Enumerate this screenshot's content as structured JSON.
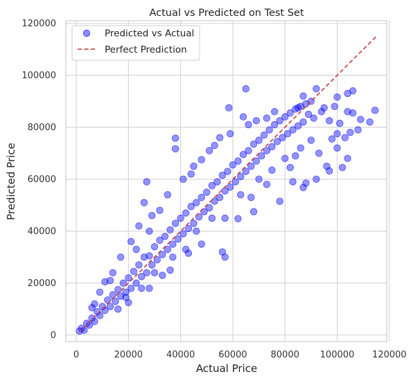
{
  "chart_data": {
    "type": "scatter",
    "title": "Actual vs Predicted on Test Set",
    "xlabel": "Actual Price",
    "ylabel": "Predicted Price",
    "xlim": [
      -4000,
      119000
    ],
    "ylim": [
      -2500,
      121000
    ],
    "xticks": [
      0,
      20000,
      40000,
      60000,
      80000,
      100000,
      120000
    ],
    "yticks": [
      0,
      20000,
      40000,
      60000,
      80000,
      100000,
      120000
    ],
    "xtick_labels": [
      "0",
      "20000",
      "40000",
      "60000",
      "80000",
      "100000",
      "120000"
    ],
    "ytick_labels": [
      "0",
      "20000",
      "40000",
      "60000",
      "80000",
      "100000",
      "120000"
    ],
    "grid": true,
    "legend_position": "top-left",
    "legend": [
      "Predicted vs Actual",
      "Perfect Prediction"
    ],
    "colors": {
      "points": "#0000ff",
      "reference_line": "#cd4b4b",
      "grid": "#d3d3d3",
      "frame": "#cccccc"
    },
    "series": [
      {
        "name": "Predicted vs Actual",
        "kind": "scatter",
        "note": "dense cloud along the diagonal; only representative and outlier points are listed",
        "points": [
          [
            1200,
            1500
          ],
          [
            2000,
            2600
          ],
          [
            3000,
            1800
          ],
          [
            4000,
            4500
          ],
          [
            5000,
            3800
          ],
          [
            6000,
            6500
          ],
          [
            7000,
            5200
          ],
          [
            8000,
            9000
          ],
          [
            9000,
            7500
          ],
          [
            10000,
            11000
          ],
          [
            11000,
            9500
          ],
          [
            12000,
            13500
          ],
          [
            13000,
            11000
          ],
          [
            14000,
            15500
          ],
          [
            15000,
            13000
          ],
          [
            16000,
            17500
          ],
          [
            17000,
            15000
          ],
          [
            18000,
            20000
          ],
          [
            19000,
            16500
          ],
          [
            20000,
            22000
          ],
          [
            21000,
            18000
          ],
          [
            22000,
            24500
          ],
          [
            23000,
            20000
          ],
          [
            24000,
            27000
          ],
          [
            25000,
            22500
          ],
          [
            26000,
            30000
          ],
          [
            27000,
            24000
          ],
          [
            28000,
            30500
          ],
          [
            29000,
            27000
          ],
          [
            30000,
            34000
          ],
          [
            31000,
            29000
          ],
          [
            32000,
            36500
          ],
          [
            33000,
            31000
          ],
          [
            34000,
            38000
          ],
          [
            35000,
            33000
          ],
          [
            36000,
            40500
          ],
          [
            37000,
            35000
          ],
          [
            38000,
            43000
          ],
          [
            39000,
            37000
          ],
          [
            40000,
            45000
          ],
          [
            41000,
            39000
          ],
          [
            42000,
            47000
          ],
          [
            43000,
            41000
          ],
          [
            44000,
            49500
          ],
          [
            45000,
            43000
          ],
          [
            46000,
            51000
          ],
          [
            47000,
            45500
          ],
          [
            48000,
            53000
          ],
          [
            49000,
            47500
          ],
          [
            50000,
            55000
          ],
          [
            51000,
            49000
          ],
          [
            52000,
            57500
          ],
          [
            53000,
            51500
          ],
          [
            54000,
            59000
          ],
          [
            55000,
            53000
          ],
          [
            56000,
            61500
          ],
          [
            57000,
            55500
          ],
          [
            58000,
            63000
          ],
          [
            59000,
            57000
          ],
          [
            60000,
            65500
          ],
          [
            61000,
            59000
          ],
          [
            62000,
            67000
          ],
          [
            63000,
            61000
          ],
          [
            64000,
            69500
          ],
          [
            65000,
            63000
          ],
          [
            66000,
            71000
          ],
          [
            67000,
            65000
          ],
          [
            68000,
            73500
          ],
          [
            69000,
            67000
          ],
          [
            70000,
            75000
          ],
          [
            71000,
            69000
          ],
          [
            72000,
            77000
          ],
          [
            73000,
            71000
          ],
          [
            74000,
            79000
          ],
          [
            75000,
            72500
          ],
          [
            76000,
            81000
          ],
          [
            77000,
            74500
          ],
          [
            78000,
            82500
          ],
          [
            79000,
            76000
          ],
          [
            80000,
            84000
          ],
          [
            81000,
            77500
          ],
          [
            82000,
            85500
          ],
          [
            83000,
            79000
          ],
          [
            84000,
            87000
          ],
          [
            85000,
            80500
          ],
          [
            86000,
            88000
          ],
          [
            87000,
            82000
          ],
          [
            88000,
            89000
          ],
          [
            89000,
            85000
          ],
          [
            27000,
            59000
          ],
          [
            26000,
            51000
          ],
          [
            38000,
            75800
          ],
          [
            38000,
            71700
          ],
          [
            58500,
            87500
          ],
          [
            65000,
            94800
          ],
          [
            37000,
            30000
          ],
          [
            57000,
            30000
          ],
          [
            56000,
            32000
          ],
          [
            30000,
            24000
          ],
          [
            25000,
            18000
          ],
          [
            19000,
            14500
          ],
          [
            16000,
            10000
          ],
          [
            33000,
            23000
          ],
          [
            23000,
            33000
          ],
          [
            28000,
            40000
          ],
          [
            43000,
            31500
          ],
          [
            48000,
            35000
          ],
          [
            62000,
            44800
          ],
          [
            68000,
            47500
          ],
          [
            78000,
            51500
          ],
          [
            83000,
            59000
          ],
          [
            88000,
            58500
          ],
          [
            87000,
            56800
          ],
          [
            73000,
            58000
          ],
          [
            92000,
            60000
          ],
          [
            97000,
            63200
          ],
          [
            102000,
            64500
          ],
          [
            93000,
            70000
          ],
          [
            96000,
            65000
          ],
          [
            98000,
            75500
          ],
          [
            100000,
            72000
          ],
          [
            104000,
            68000
          ],
          [
            100000,
            77500
          ],
          [
            103000,
            76000
          ],
          [
            105000,
            78000
          ],
          [
            101000,
            81500
          ],
          [
            104000,
            86000
          ],
          [
            106000,
            85500
          ],
          [
            100000,
            91600
          ],
          [
            104000,
            93000
          ],
          [
            106000,
            94000
          ],
          [
            92000,
            94800
          ],
          [
            95000,
            87500
          ],
          [
            90000,
            90000
          ],
          [
            87000,
            92000
          ],
          [
            85000,
            87500
          ],
          [
            91000,
            83500
          ],
          [
            94000,
            86000
          ],
          [
            97000,
            82500
          ],
          [
            99000,
            88000
          ],
          [
            112500,
            82000
          ],
          [
            114500,
            86500
          ],
          [
            108000,
            79000
          ],
          [
            109000,
            83000
          ],
          [
            86000,
            72000
          ],
          [
            84000,
            69000
          ],
          [
            80000,
            68000
          ],
          [
            90000,
            75000
          ],
          [
            76000,
            86000
          ],
          [
            73000,
            83500
          ],
          [
            69000,
            82500
          ],
          [
            66000,
            81000
          ],
          [
            64000,
            84000
          ],
          [
            59000,
            77500
          ],
          [
            55000,
            76000
          ],
          [
            53000,
            73000
          ],
          [
            51000,
            71000
          ],
          [
            48000,
            67500
          ],
          [
            45000,
            65000
          ],
          [
            44000,
            62000
          ],
          [
            41000,
            60000
          ],
          [
            35000,
            54000
          ],
          [
            32000,
            48000
          ],
          [
            29000,
            46000
          ],
          [
            24000,
            42000
          ],
          [
            21000,
            36000
          ],
          [
            17000,
            30000
          ],
          [
            14000,
            24000
          ],
          [
            11000,
            20500
          ],
          [
            9000,
            16500
          ],
          [
            7000,
            12000
          ],
          [
            13000,
            21000
          ],
          [
            6000,
            10500
          ],
          [
            36000,
            25000
          ],
          [
            46000,
            40000
          ],
          [
            52000,
            45000
          ],
          [
            63000,
            54000
          ],
          [
            70000,
            60000
          ],
          [
            75000,
            63500
          ],
          [
            82000,
            64500
          ],
          [
            57000,
            45000
          ],
          [
            67000,
            53000
          ],
          [
            42000,
            33000
          ],
          [
            20000,
            12500
          ],
          [
            28000,
            18000
          ]
        ]
      },
      {
        "name": "Perfect Prediction",
        "kind": "line",
        "style": "dashed",
        "x": [
          1000,
          115000
        ],
        "y": [
          1000,
          115000
        ]
      }
    ]
  }
}
